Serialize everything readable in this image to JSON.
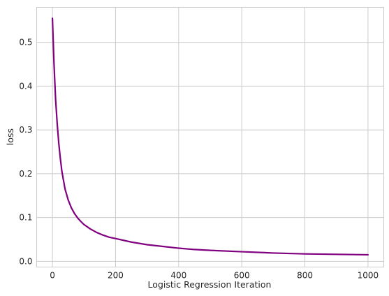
{
  "chart_data": {
    "type": "line",
    "title": "",
    "xlabel": "Logistic Regression Iteration",
    "ylabel": "loss",
    "xlim": [
      -50,
      1050
    ],
    "ylim": [
      -0.013,
      0.58
    ],
    "grid": true,
    "style": "seaborn-whitegrid",
    "x_ticks": [
      0,
      200,
      400,
      600,
      800,
      1000
    ],
    "x_tick_labels": [
      "0",
      "200",
      "400",
      "600",
      "800",
      "1000"
    ],
    "y_ticks": [
      0.0,
      0.1,
      0.2,
      0.3,
      0.4,
      0.5
    ],
    "y_tick_labels": [
      "0.0",
      "0.1",
      "0.2",
      "0.3",
      "0.4",
      "0.5"
    ],
    "series": [
      {
        "color": "#800080",
        "x": [
          0,
          5,
          10,
          15,
          20,
          25,
          30,
          40,
          50,
          60,
          70,
          80,
          90,
          100,
          120,
          140,
          160,
          180,
          200,
          250,
          300,
          350,
          400,
          450,
          500,
          600,
          700,
          800,
          900,
          1000
        ],
        "y": [
          0.555,
          0.45,
          0.37,
          0.315,
          0.27,
          0.235,
          0.205,
          0.165,
          0.14,
          0.122,
          0.109,
          0.099,
          0.091,
          0.084,
          0.074,
          0.066,
          0.06,
          0.055,
          0.052,
          0.044,
          0.038,
          0.034,
          0.03,
          0.027,
          0.025,
          0.022,
          0.019,
          0.017,
          0.016,
          0.015
        ]
      }
    ]
  }
}
